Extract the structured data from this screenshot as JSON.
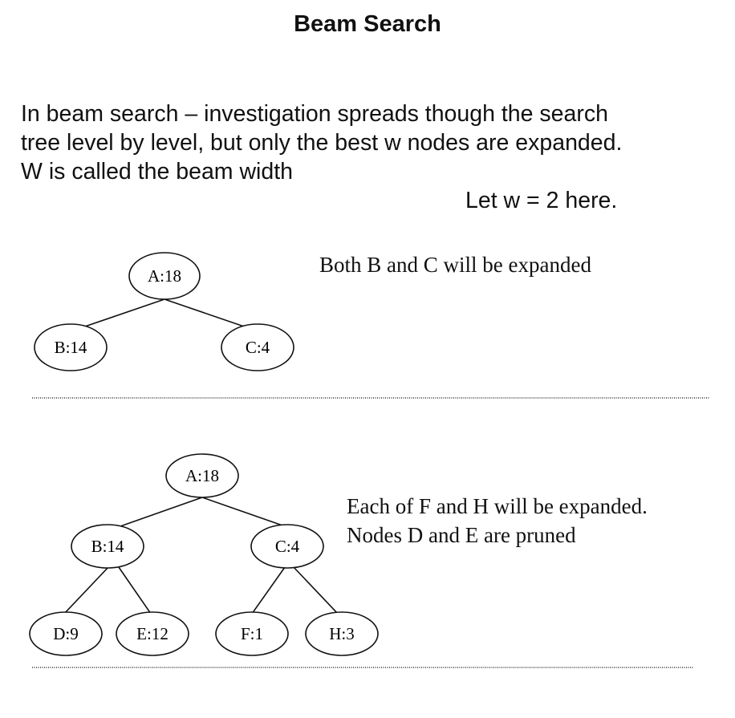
{
  "title": "Beam Search",
  "intro_lines": [
    "In beam search – investigation spreads though the search",
    "tree level by level, but only the best  w nodes are expanded.",
    "W is called the beam width"
  ],
  "beam_note": "Let w = 2 here.",
  "tree1": {
    "nodes": {
      "a": "A:18",
      "b": "B:14",
      "c": "C:4"
    },
    "note": "Both B and C will be expanded"
  },
  "tree2": {
    "nodes": {
      "a": "A:18",
      "b": "B:14",
      "c": "C:4",
      "d": "D:9",
      "e": "E:12",
      "f": "F:1",
      "h": "H:3"
    },
    "note": "Each of F and H will be expanded. Nodes D and E are pruned"
  }
}
